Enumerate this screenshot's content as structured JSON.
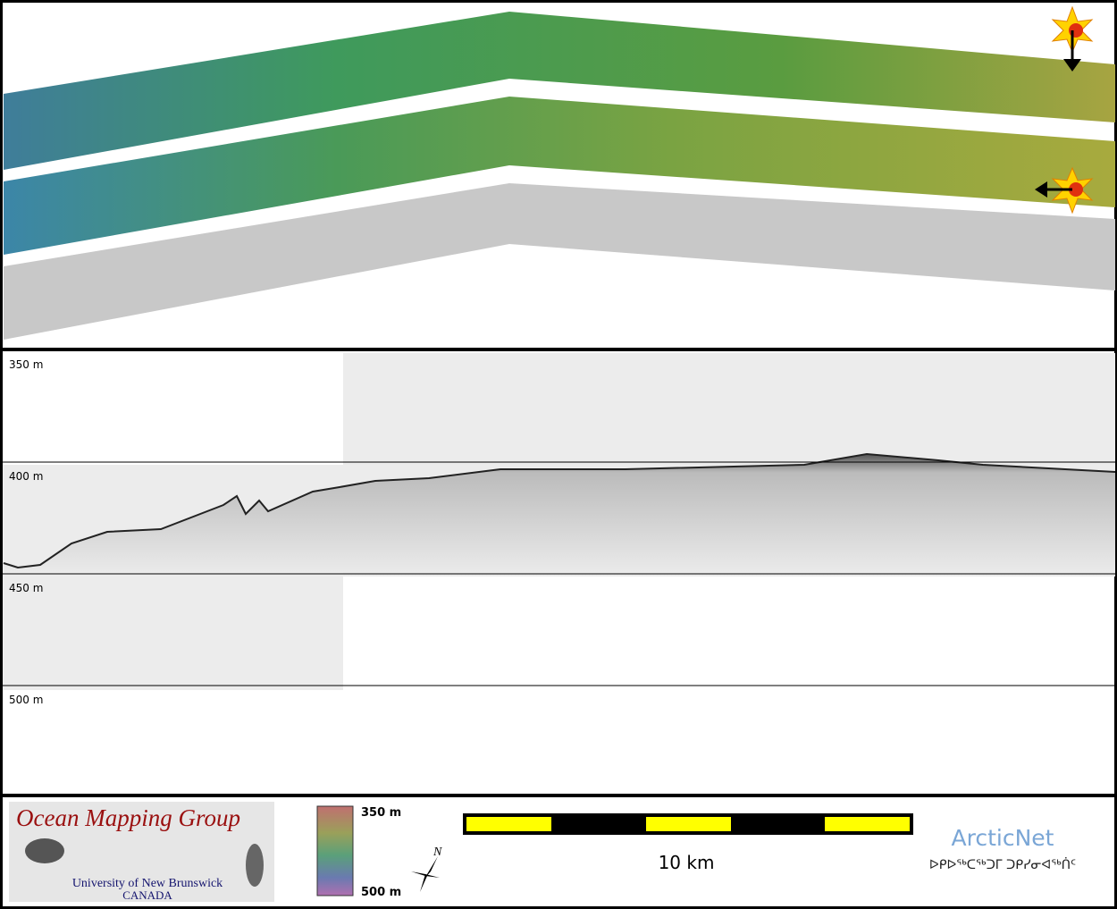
{
  "profile": {
    "depth_labels": [
      "350 m",
      "400 m",
      "450 m",
      "500 m"
    ]
  },
  "footer": {
    "logo": {
      "title": "Ocean Mapping Group",
      "university": "University of New Brunswick",
      "country": "CANADA"
    },
    "colorbar": {
      "top_label": "350 m",
      "bottom_label": "500 m"
    },
    "north": "N",
    "scale_bar": "10 km",
    "partner": {
      "name": "ArcticNet",
      "name_inuktitut": "ᐅᑭᐅᖅᑕᖅᑐᒥ ᑐᑭᓯᓂᐊᖅᑏᑦ"
    }
  }
}
